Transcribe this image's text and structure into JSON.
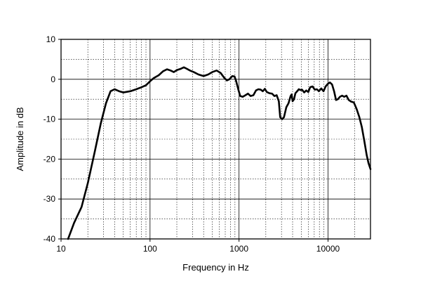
{
  "chart_data": {
    "type": "line",
    "title": "",
    "xlabel": "Frequency in Hz",
    "ylabel": "Amplitude in dB",
    "x_scale": "log",
    "xlim": [
      10,
      30000
    ],
    "ylim": [
      -40,
      10
    ],
    "grid": true,
    "x_ticks": [
      {
        "value": 10,
        "label": "10"
      },
      {
        "value": 100,
        "label": "100"
      },
      {
        "value": 1000,
        "label": "1000"
      },
      {
        "value": 10000,
        "label": "10000"
      }
    ],
    "y_ticks": [
      {
        "value": 10,
        "label": "10"
      },
      {
        "value": 0,
        "label": "0"
      },
      {
        "value": -10,
        "label": "-10"
      },
      {
        "value": -20,
        "label": "-20"
      },
      {
        "value": -30,
        "label": "-30"
      },
      {
        "value": -40,
        "label": "-40"
      }
    ],
    "series": [
      {
        "color": "#000000",
        "points": [
          [
            12,
            -40
          ],
          [
            14,
            -36
          ],
          [
            17,
            -32
          ],
          [
            20,
            -26
          ],
          [
            24,
            -18
          ],
          [
            28,
            -11
          ],
          [
            32,
            -6
          ],
          [
            36,
            -3
          ],
          [
            40,
            -2.5
          ],
          [
            45,
            -3
          ],
          [
            50,
            -3.3
          ],
          [
            60,
            -3
          ],
          [
            70,
            -2.5
          ],
          [
            80,
            -2
          ],
          [
            90,
            -1.5
          ],
          [
            100,
            -0.5
          ],
          [
            110,
            0.3
          ],
          [
            125,
            1
          ],
          [
            140,
            2
          ],
          [
            155,
            2.5
          ],
          [
            170,
            2.2
          ],
          [
            185,
            1.8
          ],
          [
            200,
            2.3
          ],
          [
            220,
            2.6
          ],
          [
            240,
            3
          ],
          [
            260,
            2.6
          ],
          [
            280,
            2.2
          ],
          [
            310,
            1.8
          ],
          [
            350,
            1.2
          ],
          [
            400,
            0.8
          ],
          [
            450,
            1.2
          ],
          [
            500,
            1.8
          ],
          [
            560,
            2.2
          ],
          [
            620,
            1.6
          ],
          [
            680,
            0.4
          ],
          [
            730,
            -0.3
          ],
          [
            780,
            0
          ],
          [
            840,
            0.8
          ],
          [
            890,
            0.7
          ],
          [
            930,
            -0.5
          ],
          [
            980,
            -2.5
          ],
          [
            1030,
            -4.2
          ],
          [
            1100,
            -4.4
          ],
          [
            1180,
            -4
          ],
          [
            1260,
            -3.6
          ],
          [
            1350,
            -4.2
          ],
          [
            1450,
            -4
          ],
          [
            1550,
            -2.8
          ],
          [
            1650,
            -2.5
          ],
          [
            1750,
            -2.6
          ],
          [
            1850,
            -3
          ],
          [
            1950,
            -2.4
          ],
          [
            2050,
            -3.2
          ],
          [
            2200,
            -3.5
          ],
          [
            2350,
            -3.6
          ],
          [
            2500,
            -4.2
          ],
          [
            2650,
            -4
          ],
          [
            2800,
            -5.5
          ],
          [
            2900,
            -9.5
          ],
          [
            3050,
            -10
          ],
          [
            3200,
            -9.5
          ],
          [
            3400,
            -7
          ],
          [
            3600,
            -6
          ],
          [
            3800,
            -4.2
          ],
          [
            3900,
            -3.8
          ],
          [
            4000,
            -5.5
          ],
          [
            4150,
            -5
          ],
          [
            4300,
            -3.5
          ],
          [
            4500,
            -3
          ],
          [
            4700,
            -2.5
          ],
          [
            4900,
            -2.7
          ],
          [
            5100,
            -2.6
          ],
          [
            5400,
            -3.3
          ],
          [
            5700,
            -2.8
          ],
          [
            6000,
            -3.2
          ],
          [
            6300,
            -2
          ],
          [
            6700,
            -1.8
          ],
          [
            7100,
            -2.6
          ],
          [
            7500,
            -2.5
          ],
          [
            7900,
            -3
          ],
          [
            8400,
            -2.3
          ],
          [
            8900,
            -3
          ],
          [
            9400,
            -1.8
          ],
          [
            9900,
            -1.2
          ],
          [
            10500,
            -0.8
          ],
          [
            11100,
            -1.3
          ],
          [
            11700,
            -3
          ],
          [
            12300,
            -5.2
          ],
          [
            12900,
            -5
          ],
          [
            13600,
            -4.4
          ],
          [
            14400,
            -4.1
          ],
          [
            15200,
            -4.4
          ],
          [
            16100,
            -4.1
          ],
          [
            17100,
            -5.2
          ],
          [
            18200,
            -5.6
          ],
          [
            19500,
            -5.8
          ],
          [
            21000,
            -7.5
          ],
          [
            22500,
            -9.5
          ],
          [
            24000,
            -12
          ],
          [
            25600,
            -15.5
          ],
          [
            27200,
            -19
          ],
          [
            28500,
            -21
          ],
          [
            30000,
            -22.5
          ]
        ]
      }
    ]
  }
}
